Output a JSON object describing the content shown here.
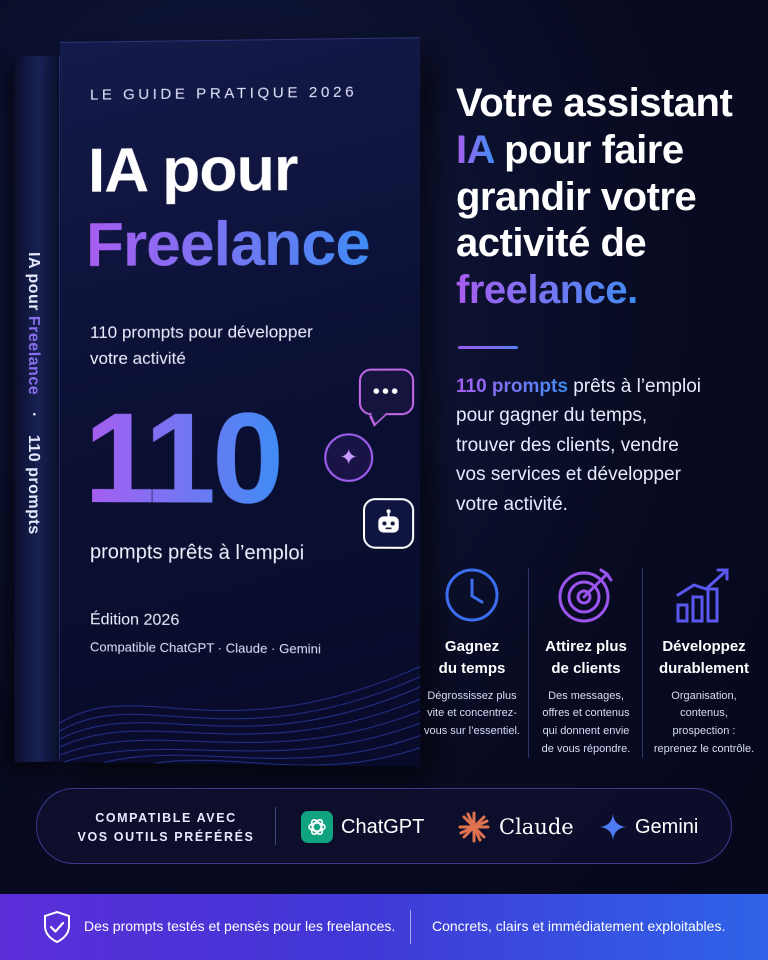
{
  "book": {
    "spine": {
      "title": "IA pour",
      "accent": "Freelance",
      "separator": "·",
      "count": "110 prompts"
    },
    "cover": {
      "kicker": "LE GUIDE PRATIQUE 2026",
      "title_line1": "IA pour",
      "title_line2": "Freelance",
      "subtitle_line1": "110 prompts pour développer",
      "subtitle_line2": "votre activité",
      "big_number": "110",
      "big_caption": "prompts prêts à l’emploi",
      "edition": "Édition 2026",
      "compatible": "Compatible ChatGPT · Claude · Gemini",
      "icons": [
        "chat-bubble-icon",
        "sparkle-icon",
        "robot-icon"
      ]
    }
  },
  "headline": {
    "line1": "Votre assistant",
    "line2_accent": "IA",
    "line2_rest": " pour faire",
    "line3": "grandir votre",
    "line4": "activité de",
    "line5_accent": "freelance."
  },
  "description": {
    "line1_accent": "110 prompts",
    "line1_rest": " prêts à l’emploi",
    "line2": "pour gagner du temps,",
    "line3": "trouver des clients, vendre",
    "line4": "vos services et développer",
    "line5": "votre activité."
  },
  "features": [
    {
      "icon": "clock-icon",
      "title1": "Gagnez",
      "title2": "du temps",
      "desc": [
        "Dégrossissez plus",
        "vite et concentrez-",
        "vous sur l’essentiel."
      ]
    },
    {
      "icon": "target-icon",
      "title1": "Attirez plus",
      "title2": "de clients",
      "desc": [
        "Des messages,",
        "offres et contenus",
        "qui donnent envie",
        "de vous répondre."
      ]
    },
    {
      "icon": "growth-chart-icon",
      "title1": "Développez",
      "title2": "durablement",
      "desc": [
        "Organisation,",
        "contenus,",
        "prospection :",
        "reprenez le contrôle."
      ]
    }
  ],
  "compatibility": {
    "label_line1": "COMPATIBLE AVEC",
    "label_line2": "VOS OUTILS PRÉFÉRÉS",
    "tools": [
      {
        "name": "ChatGPT",
        "icon": "chatgpt-logo-icon",
        "color": "#10a37f"
      },
      {
        "name": "Claude",
        "icon": "claude-logo-icon",
        "color": "#e0734f"
      },
      {
        "name": "Gemini",
        "icon": "gemini-logo-icon",
        "color": "#4f7cf5"
      }
    ]
  },
  "banner": {
    "icon": "shield-check-icon",
    "text1": "Des prompts testés et pensés pour les freelances.",
    "text2": "Concrets, clairs et immédiatement exploitables."
  },
  "colors": {
    "background": "#070a1f",
    "accent_purple": "#a95cf0",
    "accent_blue": "#3f8cf5",
    "banner_start": "#5b2ed8",
    "banner_end": "#2f63e8"
  }
}
